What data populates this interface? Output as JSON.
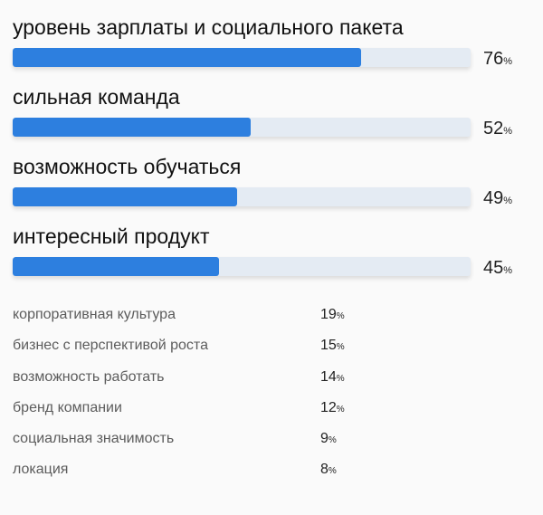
{
  "chart_data": {
    "type": "bar",
    "orientation": "horizontal",
    "title": "",
    "xlabel": "",
    "ylabel": "",
    "xlim": [
      0,
      100
    ],
    "unit": "%",
    "grid": false,
    "bar_color": "#2d7fdf",
    "track_color": "#e4ebf3",
    "categories": [
      "уровень зарплаты и социального пакета",
      "сильная команда",
      "возможность обучаться",
      "интересный продукт"
    ],
    "values": [
      76,
      52,
      49,
      45
    ],
    "secondary_items": [
      {
        "label": "корпоративная культура",
        "value": 19
      },
      {
        "label": "бизнес с перспективой роста",
        "value": 15
      },
      {
        "label": "возможность работать",
        "value": 14
      },
      {
        "label": "бренд компании",
        "value": 12
      },
      {
        "label": "социальная значимость",
        "value": 9
      },
      {
        "label": "локация",
        "value": 8
      }
    ]
  }
}
